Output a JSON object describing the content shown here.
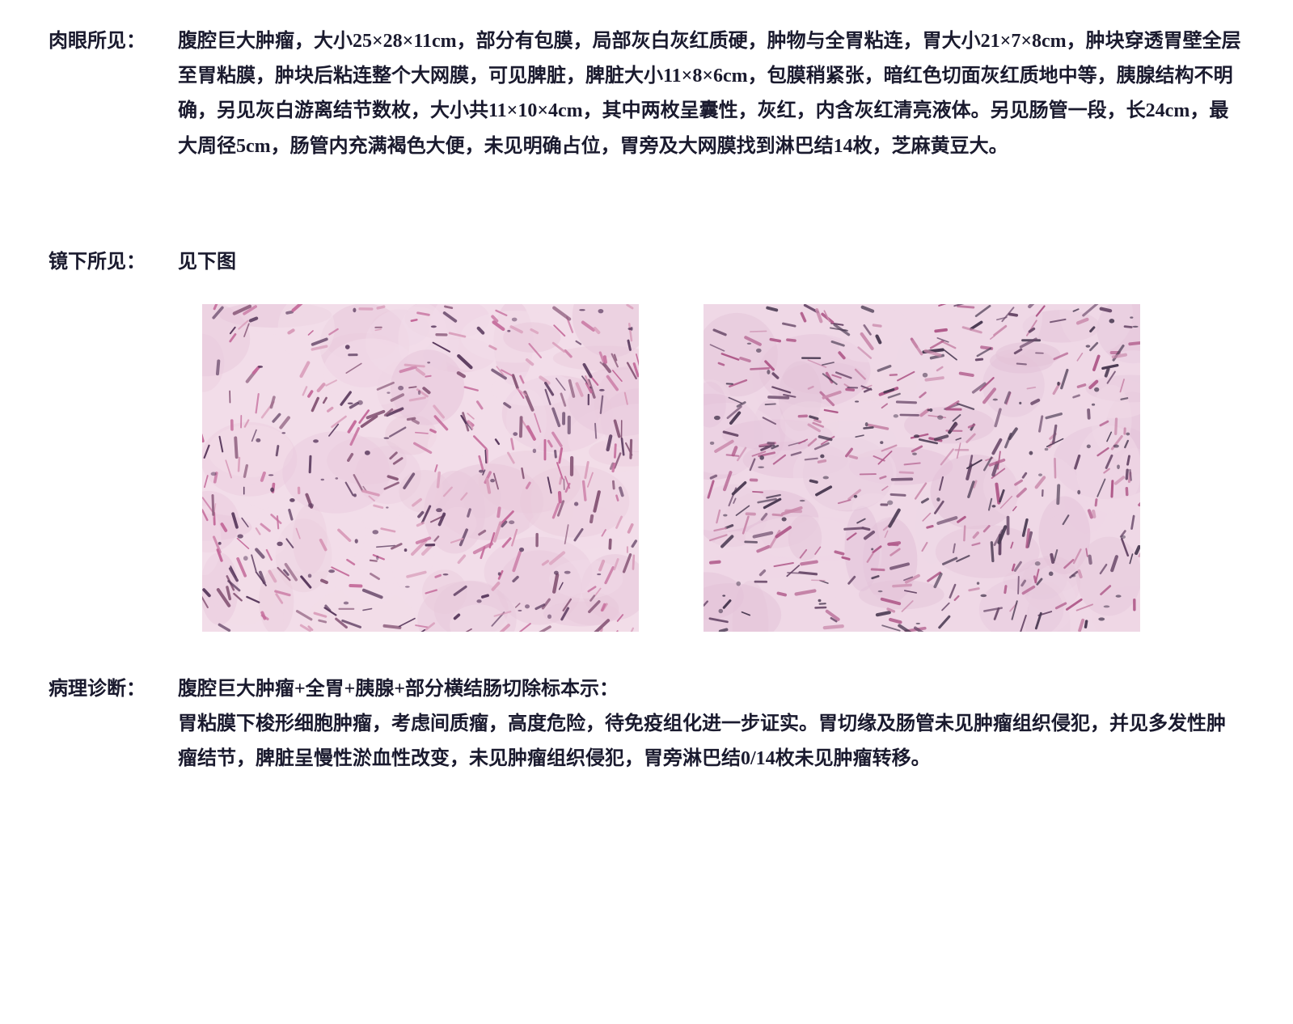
{
  "sections": {
    "gross": {
      "label": "肉眼所见：",
      "text": "腹腔巨大肿瘤，大小25×28×11cm，部分有包膜，局部灰白灰红质硬，肿物与全胃粘连，胃大小21×7×8cm，肿块穿透胃壁全层至胃粘膜，肿块后粘连整个大网膜，可见脾脏，脾脏大小11×8×6cm，包膜稍紧张，暗红色切面灰红质地中等，胰腺结构不明确，另见灰白游离结节数枚，大小共11×10×4cm，其中两枚呈囊性，灰红，内含灰红清亮液体。另见肠管一段，长24cm，最大周径5cm，肠管内充满褐色大便，未见明确占位，胃旁及大网膜找到淋巴结14枚，芝麻黄豆大。"
    },
    "microscopic": {
      "label": "镜下所见：",
      "text": "见下图"
    },
    "diagnosis": {
      "label": "病理诊断：",
      "line1": "腹腔巨大肿瘤+全胃+胰腺+部分横结肠切除标本示：",
      "line2": "胃粘膜下梭形细胞肿瘤，考虑间质瘤，高度危险，待免疫组化进一步证实。胃切缘及肠管未见肿瘤组织侵犯，并见多发性肿瘤结节，脾脏呈慢性淤血性改变，未见肿瘤组织侵犯，胃旁淋巴结0/14枚未见肿瘤转移。"
    }
  },
  "histology_images": {
    "image1": {
      "background": "#f2dde9",
      "background2": "#e8c8db",
      "stroke_dark": "#5a3a5e",
      "stroke_mid": "#8a5a7a",
      "stroke_pink": "#c46a9a",
      "stroke_light": "#d89ab8",
      "cell_count": 380
    },
    "image2": {
      "background": "#efd8e6",
      "background2": "#e3c2d8",
      "stroke_dark": "#4a3a52",
      "stroke_mid": "#6a4a6a",
      "stroke_pink": "#b05a8a",
      "stroke_light": "#ca8aac",
      "cell_count": 420
    }
  },
  "colors": {
    "text": "#1a1a2e",
    "page_bg": "#ffffff"
  },
  "typography": {
    "font_family": "SimSun",
    "font_size_pt": 18,
    "font_weight": "bold",
    "line_height": 1.8
  }
}
